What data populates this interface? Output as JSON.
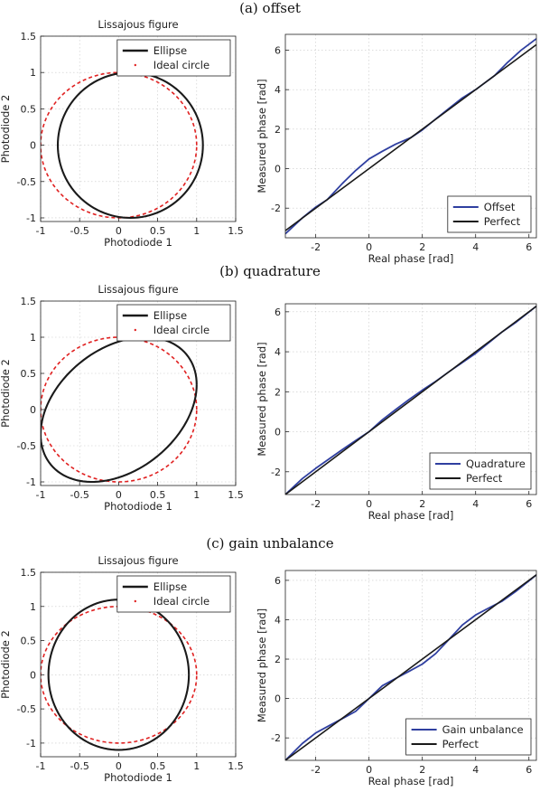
{
  "panels": [
    {
      "caption": "(a) offset"
    },
    {
      "caption": "(b) quadrature"
    },
    {
      "caption": "(c) gain unbalance"
    }
  ],
  "chart_data": [
    {
      "type": "line",
      "panel": "a",
      "title": "Lissajous figure",
      "xlabel": "Photodiode 1",
      "ylabel": "Photodiode 2",
      "xlim": [
        -1,
        1.5
      ],
      "ylim": [
        -1.05,
        1.5
      ],
      "xticks": [
        -1,
        -0.5,
        0,
        0.5,
        1,
        1.5
      ],
      "yticks": [
        -1,
        -0.5,
        0,
        0.5,
        1,
        1.5
      ],
      "grid": true,
      "legend_position": "top-right",
      "ellipse": {
        "cx": 0.15,
        "cy": 0,
        "rx": 0.93,
        "ry": 1.0,
        "phase_shift_rad": 0
      },
      "series": [
        {
          "name": "Ellipse",
          "color": "#1a1a1a",
          "style": "solid"
        },
        {
          "name": "Ideal circle",
          "color": "#e02020",
          "style": "dashed"
        }
      ]
    },
    {
      "type": "line",
      "panel": "a",
      "title": "",
      "xlabel": "Real phase [rad]",
      "ylabel": "Measured phase [rad]",
      "xlim": [
        -3.14,
        6.28
      ],
      "ylim": [
        -3.5,
        6.8
      ],
      "xticks": [
        -2,
        0,
        2,
        4,
        6
      ],
      "yticks": [
        -2,
        0,
        2,
        4,
        6
      ],
      "grid": true,
      "legend_position": "bottom-right",
      "series": [
        {
          "name": "Offset",
          "color": "#2f3fa0",
          "style": "solid",
          "x": [
            -3.14,
            -2.5,
            -2,
            -1.57,
            -1,
            -0.5,
            0,
            0.5,
            1,
            1.57,
            2,
            2.5,
            3,
            3.5,
            4,
            4.71,
            5.2,
            5.7,
            6.28
          ],
          "y": [
            -3.3,
            -2.49,
            -1.95,
            -1.57,
            -0.75,
            -0.09,
            0.49,
            0.88,
            1.24,
            1.57,
            1.96,
            2.51,
            3.05,
            3.58,
            4.0,
            4.71,
            5.38,
            5.99,
            6.58
          ]
        },
        {
          "name": "Perfect",
          "color": "#1a1a1a",
          "style": "solid",
          "x": [
            -3.14,
            6.28
          ],
          "y": [
            -3.14,
            6.28
          ]
        }
      ]
    },
    {
      "type": "line",
      "panel": "b",
      "title": "Lissajous figure",
      "xlabel": "Photodiode 1",
      "ylabel": "Photodiode 2",
      "xlim": [
        -1,
        1.5
      ],
      "ylim": [
        -1.05,
        1.5
      ],
      "xticks": [
        -1,
        -0.5,
        0,
        0.5,
        1,
        1.5
      ],
      "yticks": [
        -1,
        -0.5,
        0,
        0.5,
        1,
        1.5
      ],
      "grid": true,
      "legend_position": "top-right",
      "ellipse": {
        "cx": 0,
        "cy": 0,
        "rx": 1.0,
        "ry": 1.0,
        "phase_shift_rad": 0.35
      },
      "series": [
        {
          "name": "Ellipse",
          "color": "#1a1a1a",
          "style": "solid"
        },
        {
          "name": "Ideal circle",
          "color": "#e02020",
          "style": "dashed"
        }
      ]
    },
    {
      "type": "line",
      "panel": "b",
      "title": "",
      "xlabel": "Real phase [rad]",
      "ylabel": "Measured phase [rad]",
      "xlim": [
        -3.14,
        6.28
      ],
      "ylim": [
        -3.14,
        6.4
      ],
      "xticks": [
        -2,
        0,
        2,
        4,
        6
      ],
      "yticks": [
        -2,
        0,
        2,
        4,
        6
      ],
      "grid": true,
      "legend_position": "bottom-right",
      "series": [
        {
          "name": "Quadrature",
          "color": "#2f3fa0",
          "style": "solid",
          "x": [
            -3.14,
            -2.5,
            -2,
            -1.5,
            -1,
            -0.5,
            0,
            0.5,
            1,
            1.5,
            2,
            2.5,
            3,
            3.5,
            4,
            4.5,
            5,
            5.5,
            6.28
          ],
          "y": [
            -3.14,
            -2.34,
            -1.83,
            -1.36,
            -0.89,
            -0.44,
            0.0,
            0.6,
            1.11,
            1.61,
            2.08,
            2.52,
            3.0,
            3.46,
            3.92,
            4.46,
            5.0,
            5.46,
            6.28
          ]
        },
        {
          "name": "Perfect",
          "color": "#1a1a1a",
          "style": "solid",
          "x": [
            -3.14,
            6.28
          ],
          "y": [
            -3.14,
            6.28
          ]
        }
      ]
    },
    {
      "type": "line",
      "panel": "c",
      "title": "Lissajous figure",
      "xlabel": "Photodiode 1",
      "ylabel": "Photodiode 2",
      "xlim": [
        -1,
        1.5
      ],
      "ylim": [
        -1.2,
        1.5
      ],
      "xticks": [
        -1,
        -0.5,
        0,
        0.5,
        1,
        1.5
      ],
      "yticks": [
        -1,
        -0.5,
        0,
        0.5,
        1,
        1.5
      ],
      "grid": true,
      "legend_position": "top-right",
      "ellipse": {
        "cx": 0,
        "cy": 0,
        "rx": 0.9,
        "ry": 1.1,
        "phase_shift_rad": 0
      },
      "series": [
        {
          "name": "Ellipse",
          "color": "#1a1a1a",
          "style": "solid"
        },
        {
          "name": "Ideal circle",
          "color": "#e02020",
          "style": "dashed"
        }
      ]
    },
    {
      "type": "line",
      "panel": "c",
      "title": "",
      "xlabel": "Real phase [rad]",
      "ylabel": "Measured phase [rad]",
      "xlim": [
        -3.14,
        6.28
      ],
      "ylim": [
        -3.14,
        6.5
      ],
      "xticks": [
        -2,
        0,
        2,
        4,
        6
      ],
      "yticks": [
        -2,
        0,
        2,
        4,
        6
      ],
      "grid": true,
      "legend_position": "bottom-right",
      "series": [
        {
          "name": "Gain unbalance",
          "color": "#2f3fa0",
          "style": "solid",
          "x": [
            -3.14,
            -2.5,
            -2,
            -1.5,
            -1,
            -0.5,
            0,
            0.5,
            1,
            1.5,
            2,
            2.5,
            3,
            3.5,
            4,
            4.5,
            5,
            5.5,
            6.28
          ],
          "y": [
            -3.14,
            -2.28,
            -1.75,
            -1.38,
            -1.02,
            -0.65,
            0.0,
            0.65,
            1.02,
            1.38,
            1.75,
            2.28,
            3.0,
            3.73,
            4.24,
            4.6,
            4.95,
            5.43,
            6.28
          ]
        },
        {
          "name": "Perfect",
          "color": "#1a1a1a",
          "style": "solid",
          "x": [
            -3.14,
            6.28
          ],
          "y": [
            -3.14,
            6.28
          ]
        }
      ]
    }
  ]
}
